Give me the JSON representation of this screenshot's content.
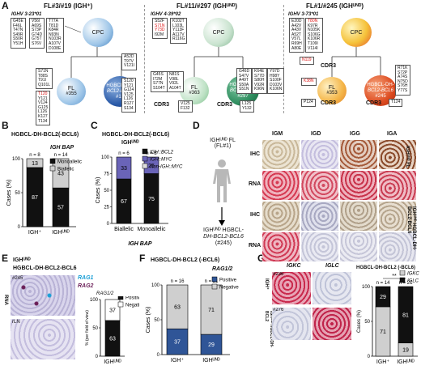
{
  "panel_labels": [
    "A",
    "B",
    "C",
    "D",
    "E",
    "F",
    "G"
  ],
  "panel_a": {
    "cases": [
      {
        "title": "FL#3/#19 (IGH⁺)",
        "ighv": "IGHV 3-23*01",
        "top_left_muts": [
          "G45E",
          "F46L",
          "T47N",
          "S49R",
          "S50R",
          "Y51H"
        ],
        "top_mid_muts": [
          "V56I",
          "A69S",
          "S73P",
          "G74D",
          "G75T",
          "S76V"
        ],
        "top_right_muts": [
          "T77A",
          "T81D",
          "K84R",
          "N93N",
          "N103R",
          "A107V",
          "D108E"
        ],
        "ancestor": "CPC",
        "node1": {
          "name": "FL",
          "id": "#355"
        },
        "node2": {
          "name": "HGBCL-DH-",
          "sub": "BCL2-BCL6",
          "id": "#19"
        },
        "node1_muts": [
          "S71N",
          "T88S",
          "T91I",
          "Q101L"
        ],
        "node1_muts2": [
          "T120",
          "Y121",
          "V124",
          "G125",
          "L126",
          "K127",
          "T134"
        ],
        "node1_muts2_red": [
          "T120"
        ],
        "node2_muts": [
          "A52D",
          "T97V",
          "V121I"
        ],
        "node2_muts2": [
          "S120",
          "Y121",
          "G124",
          "V125",
          "L126",
          "R127",
          "S134"
        ]
      },
      {
        "title": "FL#11/#297 (IGHᵁᴺᴰ)",
        "ighv": "IGHV 4-39*02",
        "top_muts_a": [
          "S52F",
          "S71N",
          "Y73D",
          "I92M"
        ],
        "top_muts_a_red": [
          "S71N",
          "Y73D"
        ],
        "top_muts_b": [
          "K102T",
          "L103L",
          "Y113F",
          "A117V",
          "R116G"
        ],
        "ancestor": "CPC",
        "node1": {
          "name": "FL",
          "id": "#363"
        },
        "node2": {
          "name": "HGBCL-DH-",
          "sub": "BCL2-BCL6",
          "id": "#297"
        },
        "node1_muts": [
          "G45S",
          "I72M",
          "S77N",
          "S104T"
        ],
        "node1_muts_b": [
          "N81S",
          "V98L",
          "V92L",
          "A104T"
        ],
        "node2_muts": [
          "G46D",
          "S47V",
          "A49T",
          "S50A",
          "S51N"
        ],
        "node2_muts_b": [
          "K64E",
          "S77D",
          "S80H",
          "V92R",
          "K96N"
        ],
        "node2_muts_c": [
          "Y97D",
          "H98Y",
          "S100F",
          "D103V",
          "K106N"
        ],
        "cdr3": "CDR3",
        "cdr3_muts_1": [
          "V125",
          "F132"
        ],
        "cdr3_muts_2": [
          "L125",
          "Y132"
        ]
      },
      {
        "title": "FL#1/#245 (IGHᵁᴺᴰ)",
        "ighv": "IGHV 3-73*01",
        "top_muts_a": [
          "E20D",
          "A42V",
          "A43V",
          "A52T",
          "V57L",
          "R69H",
          "A80E"
        ],
        "top_muts_b": [
          "T80N",
          "K97R",
          "N105K",
          "S106G",
          "K106R",
          "T109I",
          "V114I"
        ],
        "top_muts_b_red": [
          "T80N"
        ],
        "mid_red": "N119",
        "ancestor": "CPC",
        "node1": {
          "name": "FL",
          "id": "#353"
        },
        "node2": {
          "name": "HGBCL-DH-",
          "sub": "BCL2-BCL6",
          "id": "#245"
        },
        "node1_red": "K38N",
        "node2_muts": [
          "R71K",
          "S72P",
          "A74S",
          "N75D",
          "S76H",
          "Y77S"
        ],
        "cdr3": "CDR3",
        "cdr3_muts_1": [
          "P124"
        ],
        "cdr3_muts_2": [
          "T124"
        ]
      }
    ]
  },
  "panel_b": {
    "title": "HGBCL-DH-BCL2(-BCL6)",
    "chart_data": {
      "type": "bar",
      "categories": [
        "IGH⁺",
        "IGHᵁᴺᴰ"
      ],
      "n_labels": [
        "n = 8",
        "n = 14"
      ],
      "series": [
        {
          "name": "Monoallelic",
          "values": [
            87,
            57
          ],
          "color": "#111111"
        },
        {
          "name": "Biallelic",
          "values": [
            13,
            43
          ],
          "color": "#cfcfcf"
        }
      ],
      "ylabel": "Cases (%)",
      "xlabel": "",
      "ylim": [
        0,
        100
      ],
      "yticks": [
        0,
        50,
        100
      ],
      "legend_title": "IGH BAP"
    }
  },
  "panel_c": {
    "title": "HGBCL-DH-BCL2(-BCL6)",
    "subtitle": "IGHᵁᴺᴰ",
    "chart_data": {
      "type": "bar",
      "categories": [
        "Biallelic",
        "Monoallelic"
      ],
      "n_labels": [
        "n = 6",
        "n = 8"
      ],
      "series": [
        {
          "name": "IGH::BCL2",
          "values": [
            67,
            75
          ],
          "color": "#111111"
        },
        {
          "name": "IGH::MYC",
          "values": [
            33,
            25
          ],
          "color": "#6a64b8"
        },
        {
          "name": "Non-IGH::MYC",
          "values": [
            0,
            0
          ],
          "color": "#dcdcdc"
        }
      ],
      "ylabel": "Cases (%)",
      "xlabel": "IGH BAP",
      "ylim": [
        0,
        100
      ],
      "yticks": [
        0,
        25,
        50,
        75,
        100
      ]
    }
  },
  "panel_d": {
    "top_label": "IGHᵁᴺᴰ FL",
    "top_label_sub": "(FL#1)",
    "bottom_label": "IGHᵁᴺᴰ HGBCL-",
    "bottom_label_2": "DH-BCL2-BCL6",
    "bottom_label_3": "(#245)",
    "columns": [
      "IGM",
      "IGD",
      "IGG",
      "IGA"
    ],
    "rows": [
      "IHC",
      "RNA",
      "IHC",
      "RNA"
    ],
    "side_top": "IGHᵁᴺᴰ FL",
    "side_bottom": "IGHᵁᴺᴰ HGBCL-DH-BCL2-BCL6"
  },
  "panel_e": {
    "title_1": "IGHᵁᴺᴰ",
    "title_2": "HGBCL-DH-BCL2-BCL6",
    "case_label": "#245",
    "case_label_2": "rLN",
    "row_label": "RNA",
    "legend_a": "RAG1",
    "legend_b": "RAG2",
    "chart_data": {
      "type": "bar",
      "categories": [
        "IGHᵁᴺᴰ"
      ],
      "series": [
        {
          "name": "Positive",
          "values": [
            63
          ],
          "color": "#111111"
        },
        {
          "name": "Negative",
          "values": [
            37
          ],
          "color": "#ffffff"
        }
      ],
      "legend_title": "RAG1/2",
      "ylabel": "% (per field of view)",
      "ylim": [
        0,
        100
      ],
      "yticks": [
        0,
        50,
        100
      ]
    }
  },
  "panel_f": {
    "title": "HGBCL-DH-BCL2 (-BCL6)",
    "chart_data": {
      "type": "bar",
      "categories": [
        "IGH⁺",
        "IGHᵁᴺᴰ"
      ],
      "n_labels": [
        "n = 16",
        "n = 21"
      ],
      "series": [
        {
          "name": "Positive",
          "values": [
            37,
            29
          ],
          "color": "#2f5597"
        },
        {
          "name": "Negative",
          "values": [
            63,
            71
          ],
          "color": "#cfcfcf"
        }
      ],
      "legend_title": "RAG1/2",
      "ylabel": "Cases (%)",
      "ylim": [
        0,
        100
      ],
      "yticks": [
        0,
        50,
        100
      ]
    }
  },
  "panel_g": {
    "col_a": "IGKC",
    "col_b": "IGLC",
    "case_1": "#236",
    "case_2": "#276",
    "row_1": "IGH⁺",
    "row_2": "IGHᵁᴺᴰ HGBCL-DH-BCL2",
    "chart_title": "HGBCL-DH-BCL2 (-BCL6)",
    "significance": "**",
    "chart_data": {
      "type": "bar",
      "categories": [
        "IGH⁺",
        "IGHᵁᴺᴰ"
      ],
      "n_labels": [
        "n = 14",
        "n = 21"
      ],
      "series": [
        {
          "name": "IGKC",
          "values": [
            71,
            19
          ],
          "color": "#cfcfcf"
        },
        {
          "name": "IGLC",
          "values": [
            29,
            81
          ],
          "color": "#111111"
        }
      ],
      "ylabel": "Cases (%)",
      "ylim": [
        0,
        100
      ],
      "yticks": [
        0,
        50,
        100
      ]
    }
  }
}
